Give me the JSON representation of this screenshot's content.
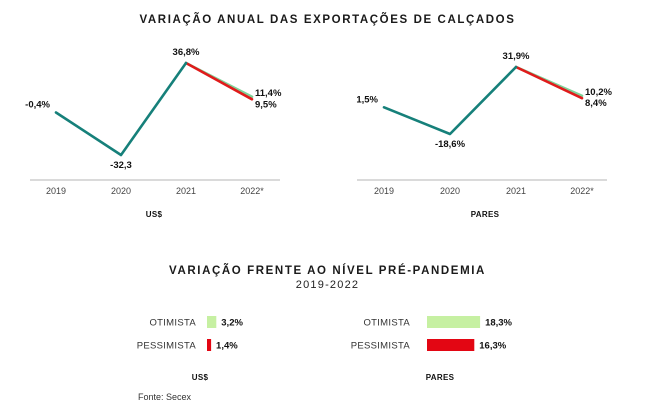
{
  "title": "VARIAÇÃO ANUAL DAS EXPORTAÇÕES DE CALÇADOS",
  "title2": "VARIAÇÃO FRENTE AO NÍVEL PRÉ-PANDEMIA",
  "subtitle2": "2019-2022",
  "source": "Fonte: Secex",
  "colors": {
    "main": "#16807a",
    "optimistic": "#7ed49a",
    "pessimistic": "#e01b1b",
    "bar_optimistic": "#c6f0a2",
    "bar_pessimistic": "#e30613"
  },
  "chart_data": [
    {
      "type": "line",
      "unit_label": "US$",
      "categories": [
        "2019",
        "2020",
        "2021",
        "2022*"
      ],
      "series": [
        {
          "values": [
            -0.4,
            -32.3,
            36.8,
            null
          ],
          "labels": [
            "-0,4%",
            "-32,3",
            "36,8%",
            ""
          ]
        },
        {
          "values": [
            null,
            null,
            36.8,
            11.4
          ],
          "labels": [
            "",
            "",
            "",
            "11,4%"
          ]
        },
        {
          "values": [
            null,
            null,
            36.8,
            9.5
          ],
          "labels": [
            "",
            "",
            "",
            "9,5%"
          ]
        }
      ]
    },
    {
      "type": "line",
      "unit_label": "PARES",
      "categories": [
        "2019",
        "2020",
        "2021",
        "2022*"
      ],
      "series": [
        {
          "values": [
            1.5,
            -18.6,
            31.9,
            null
          ],
          "labels": [
            "1,5%",
            "-18,6%",
            "31,9%",
            ""
          ]
        },
        {
          "values": [
            null,
            null,
            31.9,
            10.2
          ],
          "labels": [
            "",
            "",
            "",
            "10,2%"
          ]
        },
        {
          "values": [
            null,
            null,
            31.9,
            8.4
          ],
          "labels": [
            "",
            "",
            "",
            "8,4%"
          ]
        }
      ]
    },
    {
      "type": "bar",
      "unit_label": "US$",
      "categories": [
        "OTIMISTA",
        "PESSIMISTA"
      ],
      "values": [
        3.2,
        1.4
      ],
      "labels": [
        "3,2%",
        "1,4%"
      ]
    },
    {
      "type": "bar",
      "unit_label": "PARES",
      "categories": [
        "OTIMISTA",
        "PESSIMISTA"
      ],
      "values": [
        18.3,
        16.3
      ],
      "labels": [
        "18,3%",
        "16,3%"
      ]
    }
  ]
}
